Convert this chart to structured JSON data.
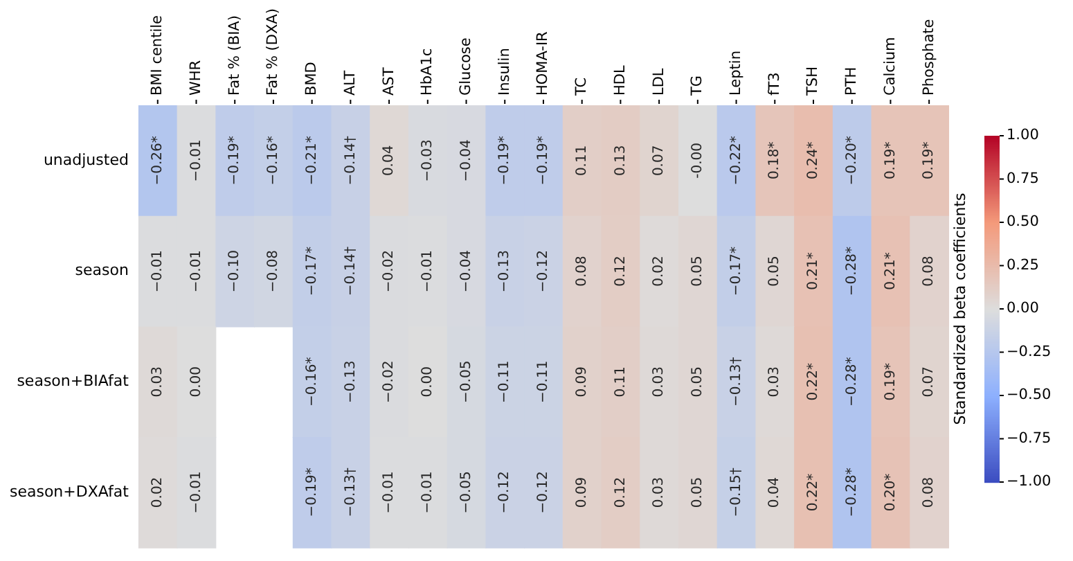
{
  "chart_data": {
    "type": "heatmap",
    "clabel": "Standardized beta coefficients",
    "categories": [
      "BMI centile",
      "WHR",
      "Fat % (BIA)",
      "Fat % (DXA)",
      "BMD",
      "ALT",
      "AST",
      "HbA1c",
      "Glucose",
      "Insulin",
      "HOMA-IR",
      "TC",
      "HDL",
      "LDL",
      "TG",
      "Leptin",
      "fT3",
      "TSH",
      "PTH",
      "Calcium",
      "Phosphate"
    ],
    "y_categories": [
      "unadjusted",
      "season",
      "season+BIAfat",
      "season+DXAfat"
    ],
    "cells": [
      [
        -0.26,
        -0.01,
        -0.19,
        -0.16,
        -0.21,
        -0.14,
        0.04,
        -0.03,
        -0.04,
        -0.19,
        -0.19,
        0.11,
        0.13,
        0.07,
        0.0,
        -0.22,
        0.18,
        0.24,
        -0.2,
        0.19,
        0.19
      ],
      [
        -0.01,
        -0.01,
        -0.1,
        -0.08,
        -0.17,
        -0.14,
        -0.02,
        -0.01,
        -0.04,
        -0.13,
        -0.12,
        0.08,
        0.12,
        0.02,
        0.05,
        -0.17,
        0.05,
        0.21,
        -0.28,
        0.21,
        0.08
      ],
      [
        0.03,
        0.0,
        null,
        null,
        -0.16,
        -0.13,
        -0.02,
        0.0,
        -0.05,
        -0.11,
        -0.11,
        0.09,
        0.11,
        0.03,
        0.05,
        -0.13,
        0.03,
        0.22,
        -0.28,
        0.19,
        0.07
      ],
      [
        0.02,
        -0.01,
        null,
        null,
        -0.19,
        -0.13,
        -0.01,
        -0.01,
        -0.05,
        -0.12,
        -0.12,
        0.09,
        0.12,
        0.03,
        0.05,
        -0.15,
        0.04,
        0.22,
        -0.28,
        0.2,
        0.08
      ]
    ],
    "cell_labels": [
      [
        "−0.26*",
        "−0.01",
        "−0.19*",
        "−0.16*",
        "−0.21*",
        "−0.14†",
        "0.04",
        "−0.03",
        "−0.04",
        "−0.19*",
        "−0.19*",
        "0.11",
        "0.13",
        "0.07",
        "-0.00",
        "−0.22*",
        "0.18*",
        "0.24*",
        "−0.20*",
        "0.19*",
        "0.19*"
      ],
      [
        "−0.01",
        "−0.01",
        "−0.10",
        "−0.08",
        "−0.17*",
        "−0.14†",
        "−0.02",
        "−0.01",
        "−0.04",
        "−0.13",
        "−0.12",
        "0.08",
        "0.12",
        "0.02",
        "0.05",
        "−0.17*",
        "0.05",
        "0.21*",
        "−0.28*",
        "0.21*",
        "0.08"
      ],
      [
        "0.03",
        "0.00",
        null,
        null,
        "−0.16*",
        "−0.13",
        "−0.02",
        "0.00",
        "−0.05",
        "−0.11",
        "−0.11",
        "0.09",
        "0.11",
        "0.03",
        "0.05",
        "−0.13†",
        "0.03",
        "0.22*",
        "−0.28*",
        "0.19*",
        "0.07"
      ],
      [
        "0.02",
        "−0.01",
        null,
        null,
        "−0.19*",
        "−0.13†",
        "−0.01",
        "−0.01",
        "−0.05",
        "−0.12",
        "−0.12",
        "0.09",
        "0.12",
        "0.03",
        "0.05",
        "−0.15†",
        "0.04",
        "0.22*",
        "−0.28*",
        "0.20*",
        "0.08"
      ]
    ],
    "clim": [
      -1,
      1
    ],
    "cticks": [
      {
        "value": 1,
        "label": "1.00"
      },
      {
        "value": 0.75,
        "label": "0.75"
      },
      {
        "value": 0.5,
        "label": "0.50"
      },
      {
        "value": 0.25,
        "label": "0.25"
      },
      {
        "value": 0,
        "label": "0.00"
      },
      {
        "value": -0.25,
        "label": "−0.25"
      },
      {
        "value": -0.5,
        "label": "−0.50"
      },
      {
        "value": -0.75,
        "label": "−0.75"
      },
      {
        "value": -1,
        "label": "−1.00"
      }
    ]
  }
}
